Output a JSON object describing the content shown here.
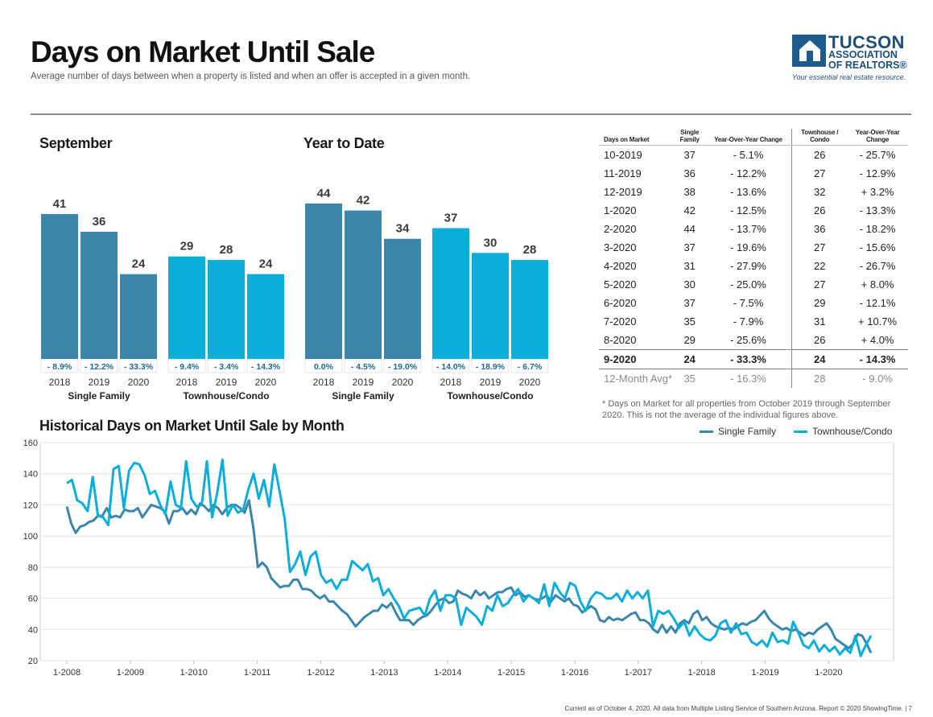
{
  "header": {
    "title": "Days on Market Until Sale",
    "subtitle": "Average number of days between when a property is listed and when an offer is accepted in a given month."
  },
  "logo": {
    "line1": "TUCSON",
    "line2": "ASSOCIATION",
    "line3": "OF REALTORS®",
    "tagline": "Your essential real estate resource."
  },
  "colors": {
    "single_family": "#3c87a9",
    "townhouse": "#0aaed8",
    "grid": "#e3e3e3",
    "pct_band": "#1e6a92"
  },
  "chart_data": [
    {
      "type": "bar",
      "title": "September",
      "groups": [
        {
          "name": "Single Family",
          "categories": [
            "2018",
            "2019",
            "2020"
          ],
          "values": [
            41,
            36,
            24
          ],
          "changes": [
            "- 8.9%",
            "- 12.2%",
            "- 33.3%"
          ]
        },
        {
          "name": "Townhouse/Condo",
          "categories": [
            "2018",
            "2019",
            "2020"
          ],
          "values": [
            29,
            28,
            24
          ],
          "changes": [
            "- 9.4%",
            "- 3.4%",
            "- 14.3%"
          ]
        }
      ]
    },
    {
      "type": "bar",
      "title": "Year to Date",
      "groups": [
        {
          "name": "Single Family",
          "categories": [
            "2018",
            "2019",
            "2020"
          ],
          "values": [
            44,
            42,
            34
          ],
          "changes": [
            "0.0%",
            "- 4.5%",
            "- 19.0%"
          ]
        },
        {
          "name": "Townhouse/Condo",
          "categories": [
            "2018",
            "2019",
            "2020"
          ],
          "values": [
            37,
            30,
            28
          ],
          "changes": [
            "- 14.0%",
            "- 18.9%",
            "- 6.7%"
          ]
        }
      ]
    },
    {
      "type": "table",
      "headers": [
        "Days on Market",
        "Single Family",
        "Year-Over-Year Change",
        "Townhouse / Condo",
        "Year-Over-Year Change"
      ],
      "rows": [
        [
          "10-2019",
          "37",
          "- 5.1%",
          "26",
          "- 25.7%"
        ],
        [
          "11-2019",
          "36",
          "- 12.2%",
          "27",
          "- 12.9%"
        ],
        [
          "12-2019",
          "38",
          "- 13.6%",
          "32",
          "+ 3.2%"
        ],
        [
          "1-2020",
          "42",
          "- 12.5%",
          "26",
          "- 13.3%"
        ],
        [
          "2-2020",
          "44",
          "- 13.7%",
          "36",
          "- 18.2%"
        ],
        [
          "3-2020",
          "37",
          "- 19.6%",
          "27",
          "- 15.6%"
        ],
        [
          "4-2020",
          "31",
          "- 27.9%",
          "22",
          "- 26.7%"
        ],
        [
          "5-2020",
          "30",
          "- 25.0%",
          "27",
          "+ 8.0%"
        ],
        [
          "6-2020",
          "37",
          "- 7.5%",
          "29",
          "- 12.1%"
        ],
        [
          "7-2020",
          "35",
          "- 7.9%",
          "31",
          "+ 10.7%"
        ],
        [
          "8-2020",
          "29",
          "- 25.6%",
          "26",
          "+ 4.0%"
        ],
        [
          "9-2020",
          "24",
          "- 33.3%",
          "24",
          "- 14.3%"
        ],
        [
          "12-Month Avg*",
          "35",
          "- 16.3%",
          "28",
          "- 9.0%"
        ]
      ],
      "footnote": "* Days on Market for all properties from October 2019 through September 2020. This is not the average of the individual figures above."
    },
    {
      "type": "line",
      "title": "Historical Days on Market Until Sale by Month",
      "ylim": [
        20,
        160
      ],
      "yticks": [
        20,
        40,
        60,
        80,
        100,
        120,
        140,
        160
      ],
      "xlim": [
        0,
        152
      ],
      "xticks": [
        "1-2008",
        "1-2009",
        "1-2010",
        "1-2011",
        "1-2012",
        "1-2013",
        "1-2014",
        "1-2015",
        "1-2016",
        "1-2017",
        "1-2018",
        "1-2019",
        "1-2020"
      ],
      "legend": "top-right",
      "series": [
        {
          "name": "Single Family",
          "values": [
            119,
            108,
            102,
            106,
            107,
            109,
            110,
            113,
            113,
            118,
            112,
            113,
            112,
            117,
            116,
            116,
            118,
            112,
            116,
            120,
            119,
            118,
            116,
            108,
            116,
            116,
            118,
            114,
            117,
            114,
            121,
            119,
            116,
            120,
            118,
            114,
            118,
            120,
            120,
            118,
            115,
            123,
            105,
            80,
            83,
            80,
            73,
            70,
            67,
            68,
            68,
            72,
            72,
            66,
            66,
            65,
            62,
            60,
            62,
            58,
            58,
            55,
            52,
            50,
            46,
            42,
            45,
            48,
            50,
            52,
            52,
            56,
            54,
            57,
            51,
            46,
            46,
            46,
            43,
            46,
            48,
            49,
            52,
            56,
            59,
            60,
            57,
            58,
            65,
            63,
            62,
            60,
            65,
            62,
            64,
            60,
            62,
            64,
            64,
            66,
            67,
            62,
            64,
            61,
            62,
            60,
            59,
            60,
            62,
            58,
            62,
            60,
            58,
            60,
            56,
            55,
            51,
            53,
            55,
            53,
            46,
            45,
            48,
            46,
            47,
            46,
            48,
            50,
            51,
            46,
            46,
            44,
            40,
            38,
            43,
            38,
            42,
            38,
            44,
            46,
            44,
            50,
            52,
            46,
            48,
            44,
            42,
            41,
            40,
            41,
            40,
            42,
            44,
            43
          ],
          "tail": [
            45,
            46,
            49,
            52,
            47,
            44,
            42,
            40,
            41,
            39,
            40,
            38,
            36,
            38,
            37,
            40,
            42,
            44,
            40,
            34,
            32,
            30,
            28,
            31,
            37,
            36,
            31,
            25
          ]
        },
        {
          "name": "Townhouse/Condo",
          "values": [
            134,
            136,
            123,
            121,
            116,
            138,
            113,
            112,
            107,
            143,
            145,
            118,
            142,
            147,
            146,
            139,
            127,
            129,
            120,
            114,
            135,
            120,
            118,
            148,
            124,
            119,
            120,
            148,
            112,
            128,
            149,
            113,
            120,
            115,
            117,
            130,
            140,
            124,
            136,
            119,
            146,
            129,
            111,
            77,
            82,
            90,
            75,
            87,
            90,
            75,
            70,
            72,
            66,
            72,
            72,
            84,
            81,
            78,
            82,
            71,
            73,
            62,
            66,
            60,
            55,
            47,
            52,
            53,
            54,
            49,
            60,
            65,
            52,
            62,
            62,
            60,
            43,
            54,
            51,
            48,
            43,
            55,
            52,
            62,
            55,
            57,
            62,
            66,
            58,
            62,
            60,
            57,
            69,
            55,
            70,
            64,
            60,
            70,
            68,
            58,
            52,
            60,
            64,
            63,
            60,
            60,
            63,
            58,
            65,
            60,
            64,
            60,
            65,
            42,
            52,
            50,
            52,
            47,
            41,
            45,
            36,
            42,
            37,
            34,
            33,
            36,
            44,
            46,
            38,
            44,
            37,
            38,
            32,
            30,
            33,
            29,
            38,
            32,
            33,
            31,
            45,
            38,
            30,
            28,
            33,
            26,
            30,
            26,
            29,
            24,
            28,
            25,
            36,
            23,
            30,
            36
          ],
          "tail": []
        }
      ]
    }
  ],
  "footer": "Current as of October 4, 2020. All data from Multiple Listing Service of Southern Arizona. Report © 2020 ShowingTime.  |  7"
}
